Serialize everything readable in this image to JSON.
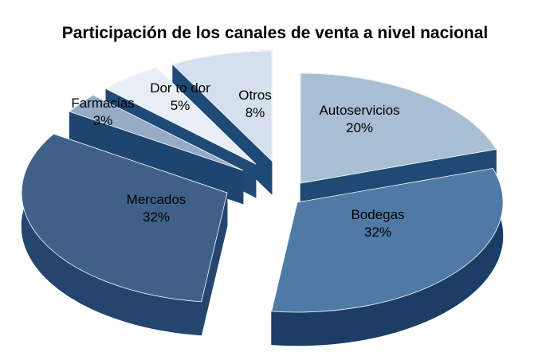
{
  "chart_data": {
    "type": "pie",
    "title": "Participación de los canales de venta a nivel nacional",
    "exploded": true,
    "three_d": true,
    "slices": [
      {
        "label": "Autoservicios",
        "value": 20,
        "value_label": "20%",
        "color": "#a7bed3",
        "side": "#1e4a75"
      },
      {
        "label": "Bodegas",
        "value": 32,
        "value_label": "32%",
        "color": "#4e7aa5",
        "side": "#1b3d66"
      },
      {
        "label": "Mercados",
        "value": 32,
        "value_label": "32%",
        "color": "#3f6189",
        "side": "#23456e"
      },
      {
        "label": "Farmacias",
        "value": 3,
        "value_label": "3%",
        "color": "#95abc6",
        "side": "#1e4470"
      },
      {
        "label": "Dor to dor",
        "value": 5,
        "value_label": "5%",
        "color": "#e7eef6",
        "side": "#214a77"
      },
      {
        "label": "Otros",
        "value": 8,
        "value_label": "8%",
        "color": "#d4e0ed",
        "side": "#1f4a77"
      }
    ]
  }
}
